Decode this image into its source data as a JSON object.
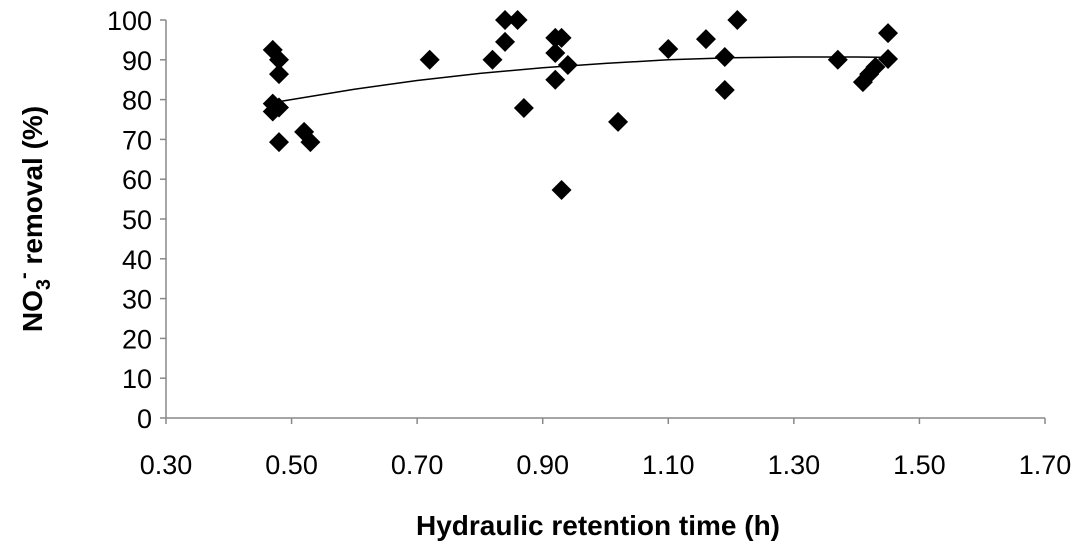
{
  "chart_data": {
    "type": "scatter",
    "x_label": "Hydraulic retention time (h)",
    "y_label": {
      "text": "NO",
      "subscript": "3",
      "superscript": "-",
      "rest": " removal (%)"
    },
    "x": [
      0.47,
      0.48,
      0.48,
      0.47,
      0.47,
      0.48,
      0.48,
      0.52,
      0.53,
      0.72,
      0.82,
      0.84,
      0.84,
      0.86,
      0.87,
      0.92,
      0.92,
      0.92,
      0.93,
      0.94,
      0.93,
      1.02,
      1.1,
      1.16,
      1.19,
      1.19,
      1.21,
      1.37,
      1.41,
      1.42,
      1.43,
      1.45,
      1.45
    ],
    "values": [
      92.5,
      90,
      86.4,
      79,
      77,
      78,
      69.3,
      71.9,
      69.3,
      90,
      90,
      94.5,
      100,
      100,
      77.9,
      95.5,
      85,
      91.7,
      95.5,
      88.7,
      57.3,
      74.4,
      92.7,
      95.2,
      90.7,
      82.4,
      100,
      90,
      84.4,
      86.4,
      88.2,
      96.7,
      90.2
    ],
    "color": "#000000",
    "trendline": {
      "x": [
        0.48,
        0.6,
        0.7,
        0.8,
        0.9,
        1.0,
        1.1,
        1.2,
        1.3,
        1.4,
        1.46
      ],
      "values": [
        79.5,
        82.6,
        84.8,
        86.6,
        88.0,
        89.1,
        90.0,
        90.5,
        90.7,
        90.7,
        90.6
      ],
      "color": "#000000"
    },
    "xlim": [
      0.3,
      1.7
    ],
    "xticks": [
      {
        "value": 0.3,
        "label": "0.30"
      },
      {
        "value": 0.5,
        "label": "0.50"
      },
      {
        "value": 0.7,
        "label": "0.70"
      },
      {
        "value": 0.9,
        "label": "0.90"
      },
      {
        "value": 1.1,
        "label": "1.10"
      },
      {
        "value": 1.3,
        "label": "1.30"
      },
      {
        "value": 1.5,
        "label": "1.50"
      },
      {
        "value": 1.7,
        "label": "1.70"
      }
    ],
    "ylim": [
      0,
      100
    ],
    "yticks": [
      0,
      10,
      20,
      30,
      40,
      50,
      60,
      70,
      80,
      90,
      100
    ],
    "grid": false
  }
}
